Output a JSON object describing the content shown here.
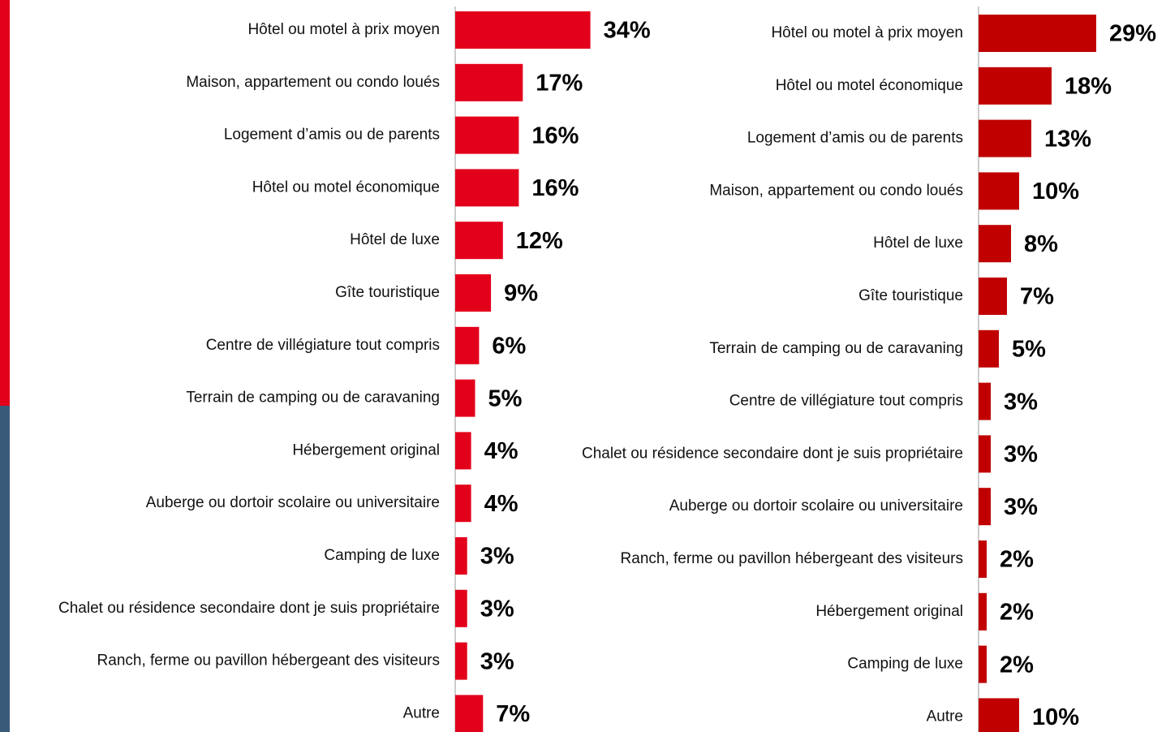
{
  "chart_data": [
    {
      "type": "bar",
      "orientation": "horizontal",
      "color": "#e3001b",
      "categories": [
        "Hôtel ou motel à prix moyen",
        "Maison, appartement ou condo loués",
        "Logement d’amis ou de parents",
        "Hôtel ou motel économique",
        "Hôtel de luxe",
        "Gîte touristique",
        "Centre de villégiature tout compris",
        "Terrain de camping ou de caravaning",
        "Hébergement original",
        "Auberge ou dortoir scolaire ou universitaire",
        "Camping de luxe",
        "Chalet ou résidence secondaire dont je suis propriétaire",
        "Ranch, ferme ou pavillon hébergeant des visiteurs",
        "Autre"
      ],
      "values": [
        34,
        17,
        16,
        16,
        12,
        9,
        6,
        5,
        4,
        4,
        3,
        3,
        3,
        7
      ],
      "value_labels": [
        "34%",
        "17%",
        "16%",
        "16%",
        "12%",
        "9%",
        "6%",
        "5%",
        "4%",
        "4%",
        "3%",
        "3%",
        "3%",
        "7%"
      ]
    },
    {
      "type": "bar",
      "orientation": "horizontal",
      "color": "#c00000",
      "categories": [
        "Hôtel ou motel à prix moyen",
        "Hôtel ou motel économique",
        "Logement d’amis ou de parents",
        "Maison, appartement ou condo loués",
        "Hôtel de luxe",
        "Gîte touristique",
        "Terrain de camping ou de caravaning",
        "Centre de villégiature tout compris",
        "Chalet ou résidence secondaire dont je suis propriétaire",
        "Auberge ou dortoir scolaire ou universitaire",
        "Ranch, ferme ou pavillon hébergeant des visiteurs",
        "Hébergement original",
        "Camping de luxe",
        "Autre"
      ],
      "values": [
        29,
        18,
        13,
        10,
        8,
        7,
        5,
        3,
        3,
        3,
        2,
        2,
        2,
        10
      ],
      "value_labels": [
        "29%",
        "18%",
        "13%",
        "10%",
        "8%",
        "7%",
        "5%",
        "3%",
        "3%",
        "3%",
        "2%",
        "2%",
        "2%",
        "10%"
      ]
    }
  ]
}
